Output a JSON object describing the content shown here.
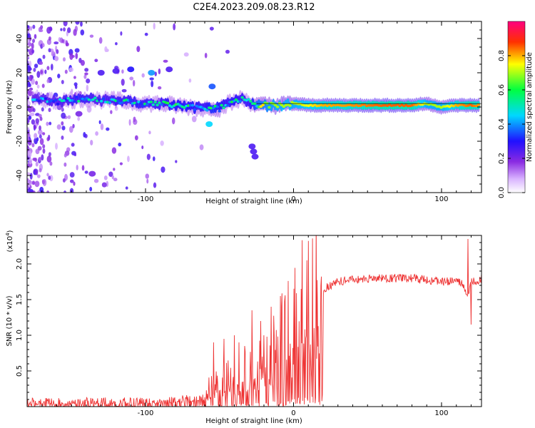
{
  "title": "C2E4.2023.209.08.23.R12",
  "chart_data": [
    {
      "type": "heatmap",
      "name": "spectrogram",
      "xlabel": "Height of straight line (km)",
      "ylabel": "Frequency (Hz)",
      "xlim": [
        -180,
        127
      ],
      "ylim": [
        -50,
        50
      ],
      "xticks": [
        -100,
        0,
        100
      ],
      "yticks": [
        -40,
        -20,
        0,
        20,
        40
      ],
      "colorbar": {
        "label": "Normalized spectral amplitude",
        "range": [
          0,
          1
        ],
        "ticks": [
          0.0,
          0.2,
          0.4,
          0.6,
          0.8
        ],
        "tick_labels": [
          "0.0",
          "0.2",
          "0.4",
          "0.6",
          "0.8"
        ],
        "colors": [
          "#ffffff",
          "#b070ff",
          "#3010ff",
          "#00d8ff",
          "#00ff40",
          "#ffff00",
          "#ff3000",
          "#ff0060"
        ]
      },
      "ridge_x": [
        -178,
        -170,
        -160,
        -150,
        -140,
        -130,
        -120,
        -110,
        -100,
        -90,
        -80,
        -70,
        -60,
        -55,
        -50,
        -45,
        -40,
        -35,
        -30,
        -25,
        -20,
        -10,
        0,
        10,
        20,
        40,
        60,
        80,
        90,
        100,
        110,
        120,
        127
      ],
      "ridge_freq": [
        4,
        5,
        3,
        4,
        5,
        4,
        4,
        3,
        2,
        2,
        1,
        0,
        -1,
        0,
        -1,
        2,
        3,
        5,
        3,
        1,
        1,
        1,
        2,
        1,
        1,
        1,
        1,
        1,
        2,
        0,
        1,
        1,
        1
      ],
      "ridge_amp": [
        0.35,
        0.4,
        0.4,
        0.45,
        0.45,
        0.4,
        0.45,
        0.45,
        0.45,
        0.45,
        0.5,
        0.5,
        0.45,
        0.55,
        0.5,
        0.45,
        0.5,
        0.45,
        0.45,
        0.6,
        0.65,
        0.7,
        0.7,
        0.75,
        0.8,
        0.82,
        0.85,
        0.85,
        0.7,
        0.7,
        0.8,
        0.85,
        0.8
      ]
    },
    {
      "type": "line",
      "name": "snr",
      "xlabel": "Height of straight line (km)",
      "ylabel": "SNR (10 * v/v)",
      "exponent_label": "(x10",
      "exponent_power": "4",
      "exponent_close": ")",
      "xlim": [
        -180,
        127
      ],
      "ylim": [
        0,
        2.4
      ],
      "xticks": [
        -100,
        0,
        100
      ],
      "yticks": [
        0.5,
        1.0,
        1.5,
        2.0
      ],
      "ytick_labels": [
        "0.5",
        "1.0",
        "1.5",
        "2.0"
      ],
      "color": "#ee3333",
      "envelope_x": [
        -180,
        -150,
        -120,
        -100,
        -90,
        -80,
        -70,
        -60,
        -50,
        -40,
        -30,
        -20,
        -15,
        -10,
        -5,
        0,
        5,
        10,
        15,
        20,
        30,
        40,
        60,
        80,
        100,
        110,
        115,
        118,
        120,
        127
      ],
      "envelope_y": [
        0.02,
        0.04,
        0.05,
        0.06,
        0.08,
        0.12,
        0.15,
        0.22,
        0.32,
        0.42,
        0.5,
        0.58,
        0.7,
        0.85,
        1.0,
        1.15,
        1.35,
        1.42,
        1.55,
        1.65,
        1.75,
        1.78,
        1.8,
        1.8,
        1.75,
        1.76,
        1.7,
        1.5,
        1.75,
        1.78
      ],
      "spikes_x": [
        -54,
        -47,
        -40,
        -37,
        -33,
        -28,
        -22,
        -20,
        -15,
        -13,
        -9,
        5,
        9,
        12,
        118,
        120,
        127
      ],
      "spikes_y": [
        0.9,
        0.95,
        1.0,
        0.9,
        0.85,
        1.35,
        1.2,
        1.0,
        1.4,
        1.0,
        1.55,
        1.65,
        2.05,
        0.42,
        2.35,
        1.15,
        1.85
      ]
    }
  ]
}
